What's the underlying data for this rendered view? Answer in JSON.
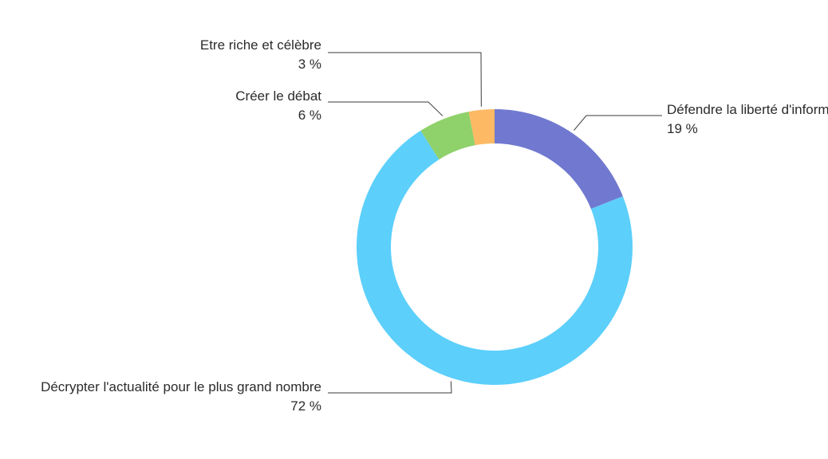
{
  "chart_data": {
    "type": "pie",
    "variant": "donut",
    "slices": [
      {
        "label": "Défendre la liberté d'information",
        "value": 19,
        "value_label": "19 %",
        "color": "#7079cf"
      },
      {
        "label": "Décrypter l'actualité pour le plus grand nombre",
        "value": 72,
        "value_label": "72 %",
        "color": "#5ccffb"
      },
      {
        "label": "Créer le débat",
        "value": 6,
        "value_label": "6 %",
        "color": "#8fd16b"
      },
      {
        "label": "Etre riche et célèbre",
        "value": 3,
        "value_label": "3 %",
        "color": "#fdb964"
      }
    ]
  }
}
